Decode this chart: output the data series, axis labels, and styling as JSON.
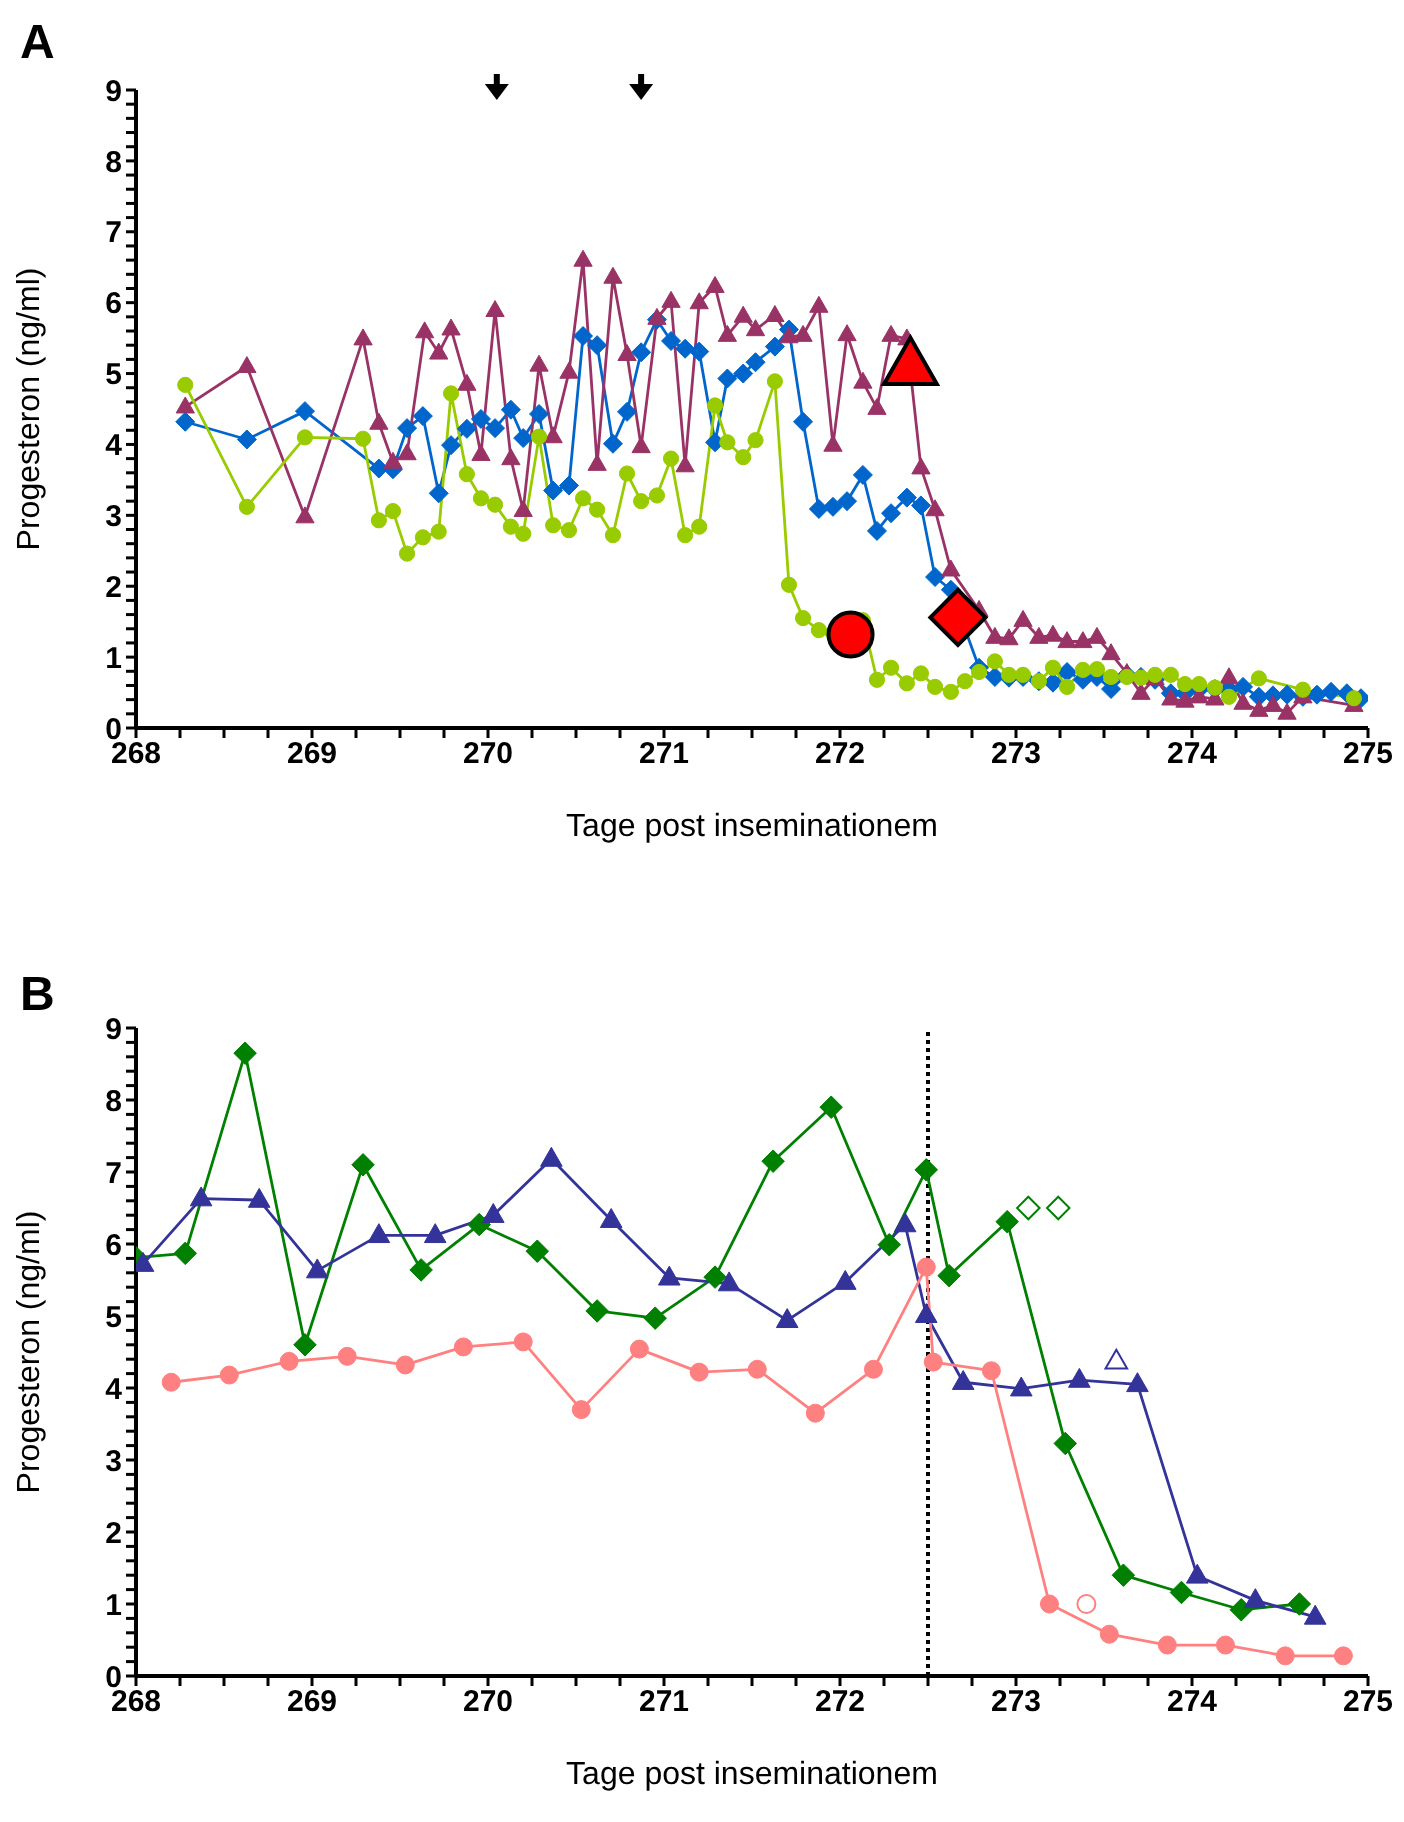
{
  "chart_data": [
    {
      "type": "line",
      "title": "A",
      "xlabel": "Tage post inseminationem",
      "ylabel": "Progesteron (ng/ml)",
      "xlim": [
        268,
        275
      ],
      "ylim": [
        0,
        9
      ],
      "xticks": [
        268,
        {
          "value": 268.25,
          "label": null
        },
        {
          "value": 268.5,
          "label": null
        },
        {
          "value": 268.75,
          "label": null
        },
        269,
        {
          "value": 269.25,
          "label": null
        },
        {
          "value": 269.5,
          "label": null
        },
        {
          "value": 269.75,
          "label": null
        },
        270,
        {
          "value": 270.25,
          "label": null
        },
        {
          "value": 270.5,
          "label": null
        },
        {
          "value": 270.75,
          "label": null
        },
        271,
        {
          "value": 271.25,
          "label": null
        },
        {
          "value": 271.5,
          "label": null
        },
        {
          "value": 271.75,
          "label": null
        },
        272,
        {
          "value": 272.25,
          "label": null
        },
        {
          "value": 272.5,
          "label": null
        },
        {
          "value": 272.75,
          "label": null
        },
        273,
        {
          "value": 273.25,
          "label": null
        },
        {
          "value": 273.5,
          "label": null
        },
        {
          "value": 273.75,
          "label": null
        },
        274,
        {
          "value": 274.25,
          "label": null
        },
        {
          "value": 274.5,
          "label": null
        },
        {
          "value": 274.75,
          "label": null
        },
        275
      ],
      "yticks": [
        0,
        {
          "value": 0.2,
          "label": null
        },
        {
          "value": 0.4,
          "label": null
        },
        {
          "value": 0.6,
          "label": null
        },
        {
          "value": 0.8,
          "label": null
        },
        1,
        {
          "value": 1.2,
          "label": null
        },
        {
          "value": 1.4,
          "label": null
        },
        {
          "value": 1.6,
          "label": null
        },
        {
          "value": 1.8,
          "label": null
        },
        2,
        {
          "value": 2.2,
          "label": null
        },
        {
          "value": 2.4,
          "label": null
        },
        {
          "value": 2.6,
          "label": null
        },
        {
          "value": 2.8,
          "label": null
        },
        3,
        {
          "value": 3.2,
          "label": null
        },
        {
          "value": 3.4,
          "label": null
        },
        {
          "value": 3.6,
          "label": null
        },
        {
          "value": 3.8,
          "label": null
        },
        4,
        {
          "value": 4.2,
          "label": null
        },
        {
          "value": 4.4,
          "label": null
        },
        {
          "value": 4.6,
          "label": null
        },
        {
          "value": 4.8,
          "label": null
        },
        5,
        {
          "value": 5.2,
          "label": null
        },
        {
          "value": 5.4,
          "label": null
        },
        {
          "value": 5.6,
          "label": null
        },
        {
          "value": 5.8,
          "label": null
        },
        6,
        {
          "value": 6.2,
          "label": null
        },
        {
          "value": 6.4,
          "label": null
        },
        {
          "value": 6.6,
          "label": null
        },
        {
          "value": 6.8,
          "label": null
        },
        7,
        {
          "value": 7.2,
          "label": null
        },
        {
          "value": 7.4,
          "label": null
        },
        {
          "value": 7.6,
          "label": null
        },
        {
          "value": 7.8,
          "label": null
        },
        8,
        {
          "value": 8.2,
          "label": null
        },
        {
          "value": 8.4,
          "label": null
        },
        {
          "value": 8.6,
          "label": null
        },
        {
          "value": 8.8,
          "label": null
        },
        9
      ],
      "series": [
        {
          "type": "line",
          "marker": "diamond",
          "color": "#0066cc",
          "x": [
            268.28,
            268.63,
            268.96,
            269.38,
            269.46,
            269.54,
            269.63,
            269.72,
            269.79,
            269.88,
            269.96,
            270.04,
            270.13,
            270.2,
            270.29,
            270.37,
            270.46,
            270.54,
            270.62,
            270.71,
            270.79,
            270.87,
            270.96,
            271.04,
            271.12,
            271.2,
            271.29,
            271.36,
            271.45,
            271.52,
            271.63,
            271.71,
            271.79,
            271.88,
            271.96,
            272.04,
            272.13,
            272.21,
            272.29,
            272.38,
            272.46,
            272.54,
            272.63,
            272.79,
            272.88,
            272.96,
            273.04,
            273.13,
            273.21,
            273.29,
            273.38,
            273.46,
            273.54,
            273.63,
            273.71,
            273.79,
            273.88,
            273.96,
            274.04,
            274.13,
            274.21,
            274.29,
            274.38,
            274.46,
            274.54,
            274.63,
            274.71,
            274.79,
            274.88,
            274.96
          ],
          "values": [
            4.32,
            4.07,
            4.47,
            3.66,
            3.65,
            4.23,
            4.4,
            3.31,
            3.99,
            4.22,
            4.36,
            4.23,
            4.49,
            4.09,
            4.43,
            3.35,
            3.42,
            5.53,
            5.4,
            4.01,
            4.46,
            5.3,
            5.76,
            5.46,
            5.35,
            5.31,
            4.03,
            4.93,
            5.0,
            5.16,
            5.38,
            5.62,
            4.32,
            3.09,
            3.12,
            3.2,
            3.57,
            2.78,
            3.03,
            3.25,
            3.14,
            2.13,
            1.95,
            0.85,
            0.72,
            0.71,
            0.72,
            0.66,
            0.64,
            0.79,
            0.68,
            0.72,
            0.55,
            0.75,
            0.72,
            0.68,
            0.49,
            0.49,
            0.54,
            0.55,
            0.54,
            0.58,
            0.44,
            0.46,
            0.47,
            0.44,
            0.47,
            0.51,
            0.49,
            0.42
          ]
        },
        {
          "type": "line",
          "marker": "triangle",
          "color": "#993366",
          "x": [
            268.28,
            268.63,
            268.96,
            269.29,
            269.38,
            269.46,
            269.54,
            269.64,
            269.72,
            269.79,
            269.88,
            269.96,
            270.04,
            270.13,
            270.2,
            270.29,
            270.37,
            270.46,
            270.54,
            270.62,
            270.71,
            270.79,
            270.87,
            270.96,
            271.04,
            271.12,
            271.2,
            271.29,
            271.36,
            271.45,
            271.52,
            271.63,
            271.71,
            271.79,
            271.88,
            271.96,
            272.04,
            272.13,
            272.21,
            272.29,
            272.38,
            272.46,
            272.54,
            272.63,
            272.79,
            272.88,
            272.96,
            273.04,
            273.13,
            273.21,
            273.29,
            273.38,
            273.46,
            273.54,
            273.63,
            273.71,
            273.79,
            273.88,
            273.96,
            274.04,
            274.13,
            274.21,
            274.29,
            274.38,
            274.46,
            274.54,
            274.63,
            274.92
          ],
          "values": [
            4.53,
            5.1,
            2.98,
            5.49,
            4.3,
            3.75,
            3.87,
            5.59,
            5.29,
            5.63,
            4.85,
            3.86,
            5.89,
            3.8,
            3.07,
            5.12,
            4.11,
            5.02,
            6.6,
            3.72,
            6.36,
            5.27,
            3.97,
            5.78,
            6.02,
            3.7,
            6.0,
            6.23,
            5.54,
            5.81,
            5.62,
            5.82,
            5.52,
            5.54,
            5.95,
            3.99,
            5.55,
            4.88,
            4.51,
            5.54,
            5.49,
            3.67,
            3.08,
            2.23,
            1.66,
            1.28,
            1.26,
            1.52,
            1.28,
            1.31,
            1.22,
            1.22,
            1.28,
            1.05,
            0.77,
            0.49,
            0.7,
            0.41,
            0.38,
            0.44,
            0.41,
            0.71,
            0.35,
            0.25,
            0.32,
            0.21,
            0.44,
            0.32
          ]
        },
        {
          "type": "line",
          "marker": "circle",
          "color": "#99cc00",
          "x": [
            268.28,
            268.63,
            268.96,
            269.29,
            269.38,
            269.46,
            269.54,
            269.63,
            269.72,
            269.79,
            269.88,
            269.96,
            270.04,
            270.13,
            270.2,
            270.29,
            270.37,
            270.46,
            270.54,
            270.62,
            270.71,
            270.79,
            270.87,
            270.96,
            271.04,
            271.12,
            271.2,
            271.29,
            271.36,
            271.45,
            271.52,
            271.63,
            271.71,
            271.79,
            271.88,
            271.96,
            272.13,
            272.21,
            272.29,
            272.38,
            272.46,
            272.54,
            272.63,
            272.71,
            272.79,
            272.88,
            272.96,
            273.04,
            273.13,
            273.21,
            273.29,
            273.38,
            273.46,
            273.54,
            273.63,
            273.71,
            273.79,
            273.88,
            273.96,
            274.04,
            274.13,
            274.21,
            274.38,
            274.63,
            274.92
          ],
          "values": [
            4.84,
            3.12,
            4.1,
            4.08,
            2.93,
            3.06,
            2.46,
            2.69,
            2.77,
            4.72,
            3.58,
            3.24,
            3.15,
            2.84,
            2.74,
            4.11,
            2.86,
            2.79,
            3.24,
            3.08,
            2.72,
            3.59,
            3.2,
            3.28,
            3.8,
            2.72,
            2.84,
            4.55,
            4.03,
            3.82,
            4.06,
            4.89,
            2.02,
            1.55,
            1.38,
            1.34,
            1.52,
            0.68,
            0.85,
            0.63,
            0.77,
            0.58,
            0.51,
            0.66,
            0.79,
            0.94,
            0.75,
            0.75,
            0.66,
            0.85,
            0.58,
            0.82,
            0.83,
            0.72,
            0.72,
            0.71,
            0.75,
            0.75,
            0.62,
            0.62,
            0.57,
            0.44,
            0.7,
            0.54,
            0.42
          ]
        },
        {
          "type": "scatter",
          "marker": "circle",
          "color": "#000000",
          "colors": [
            "#ff0000"
          ],
          "x": [
            272.06
          ],
          "values": [
            1.32
          ]
        },
        {
          "type": "scatter",
          "marker": "triangle",
          "color": "#000000",
          "colors": [
            "#ff0000"
          ],
          "x": [
            272.4
          ],
          "values": [
            5.1
          ]
        },
        {
          "type": "scatter",
          "marker": "diamond",
          "color": "#000000",
          "colors": [
            "#ff0000"
          ],
          "x": [
            272.67
          ],
          "values": [
            1.56
          ]
        }
      ]
    },
    {
      "type": "line",
      "title": "B",
      "xlabel": "Tage post inseminationem",
      "ylabel": "Progesteron (ng/ml)",
      "xlim": [
        268,
        275
      ],
      "ylim": [
        0,
        9
      ],
      "xticks": [
        268,
        {
          "value": 268.25,
          "label": null
        },
        {
          "value": 268.5,
          "label": null
        },
        {
          "value": 268.75,
          "label": null
        },
        269,
        {
          "value": 269.25,
          "label": null
        },
        {
          "value": 269.5,
          "label": null
        },
        {
          "value": 269.75,
          "label": null
        },
        270,
        {
          "value": 270.25,
          "label": null
        },
        {
          "value": 270.5,
          "label": null
        },
        {
          "value": 270.75,
          "label": null
        },
        271,
        {
          "value": 271.25,
          "label": null
        },
        {
          "value": 271.5,
          "label": null
        },
        {
          "value": 271.75,
          "label": null
        },
        272,
        {
          "value": 272.25,
          "label": null
        },
        {
          "value": 272.5,
          "label": null
        },
        {
          "value": 272.75,
          "label": null
        },
        273,
        {
          "value": 273.25,
          "label": null
        },
        {
          "value": 273.5,
          "label": null
        },
        {
          "value": 273.75,
          "label": null
        },
        274,
        {
          "value": 274.25,
          "label": null
        },
        {
          "value": 274.5,
          "label": null
        },
        {
          "value": 274.75,
          "label": null
        },
        275
      ],
      "yticks": [
        0,
        {
          "value": 0.2,
          "label": null
        },
        {
          "value": 0.4,
          "label": null
        },
        {
          "value": 0.6,
          "label": null
        },
        {
          "value": 0.8,
          "label": null
        },
        1,
        {
          "value": 1.2,
          "label": null
        },
        {
          "value": 1.4,
          "label": null
        },
        {
          "value": 1.6,
          "label": null
        },
        {
          "value": 1.8,
          "label": null
        },
        2,
        {
          "value": 2.2,
          "label": null
        },
        {
          "value": 2.4,
          "label": null
        },
        {
          "value": 2.6,
          "label": null
        },
        {
          "value": 2.8,
          "label": null
        },
        3,
        {
          "value": 3.2,
          "label": null
        },
        {
          "value": 3.4,
          "label": null
        },
        {
          "value": 3.6,
          "label": null
        },
        {
          "value": 3.8,
          "label": null
        },
        4,
        {
          "value": 4.2,
          "label": null
        },
        {
          "value": 4.4,
          "label": null
        },
        {
          "value": 4.6,
          "label": null
        },
        {
          "value": 4.8,
          "label": null
        },
        5,
        {
          "value": 5.2,
          "label": null
        },
        {
          "value": 5.4,
          "label": null
        },
        {
          "value": 5.6,
          "label": null
        },
        {
          "value": 5.8,
          "label": null
        },
        6,
        {
          "value": 6.2,
          "label": null
        },
        {
          "value": 6.4,
          "label": null
        },
        {
          "value": 6.6,
          "label": null
        },
        {
          "value": 6.8,
          "label": null
        },
        7,
        {
          "value": 7.2,
          "label": null
        },
        {
          "value": 7.4,
          "label": null
        },
        {
          "value": 7.6,
          "label": null
        },
        {
          "value": 7.8,
          "label": null
        },
        8,
        {
          "value": 8.2,
          "label": null
        },
        {
          "value": 8.4,
          "label": null
        },
        {
          "value": 8.6,
          "label": null
        },
        {
          "value": 8.8,
          "label": null
        },
        9
      ],
      "ref_lines": [
        {
          "axis": "x",
          "value": 272.5,
          "color": "#000000",
          "line_style": "dotted"
        }
      ],
      "series": [
        {
          "type": "line",
          "marker": "diamond",
          "color": "#008000",
          "x": [
            268.0,
            268.28,
            268.62,
            268.96,
            269.29,
            269.62,
            269.95,
            270.28,
            270.62,
            270.95,
            271.29,
            271.62,
            271.95,
            272.28,
            272.49,
            272.62,
            272.95,
            273.28,
            273.61,
            273.94,
            274.28,
            274.61
          ],
          "values": [
            5.81,
            5.87,
            8.65,
            4.6,
            7.1,
            5.64,
            6.27,
            5.9,
            5.07,
            4.97,
            5.54,
            7.15,
            7.9,
            5.99,
            7.03,
            5.56,
            6.31,
            3.23,
            1.4,
            1.16,
            0.92,
            1.0
          ]
        },
        {
          "type": "line",
          "marker": "triangle",
          "color": "#333399",
          "x": [
            268.04,
            268.37,
            268.7,
            269.03,
            269.38,
            269.7,
            270.03,
            270.36,
            270.7,
            271.03,
            271.37,
            271.7,
            272.03,
            272.37,
            272.49,
            272.7,
            273.03,
            273.36,
            273.69,
            274.03,
            274.36,
            274.7
          ],
          "values": [
            5.72,
            6.63,
            6.61,
            5.63,
            6.12,
            6.12,
            6.4,
            7.18,
            6.33,
            5.53,
            5.45,
            4.94,
            5.47,
            6.27,
            5.01,
            4.08,
            3.99,
            4.11,
            4.05,
            1.39,
            1.05,
            0.82
          ]
        },
        {
          "type": "line",
          "marker": "circle",
          "color": "#ff8080",
          "x": [
            268.2,
            268.53,
            268.87,
            269.2,
            269.53,
            269.86,
            270.2,
            270.53,
            270.86,
            271.2,
            271.53,
            271.86,
            272.19,
            272.49,
            272.53,
            272.86,
            273.19,
            273.53,
            273.86,
            274.19,
            274.53,
            274.86
          ],
          "values": [
            4.08,
            4.18,
            4.37,
            4.44,
            4.32,
            4.57,
            4.64,
            3.7,
            4.54,
            4.22,
            4.26,
            3.65,
            4.26,
            5.68,
            4.36,
            4.24,
            1.0,
            0.58,
            0.43,
            0.43,
            0.28,
            0.28
          ]
        },
        {
          "type": "scatter",
          "marker": "diamond",
          "color": "#008000",
          "x": [
            273.07,
            273.24
          ],
          "values": [
            6.5,
            6.5
          ]
        },
        {
          "type": "scatter",
          "marker": "triangle",
          "color": "#333399",
          "x": [
            273.57
          ],
          "values": [
            4.37
          ]
        },
        {
          "type": "scatter",
          "marker": "circle",
          "color": "#ff8080",
          "x": [
            273.4
          ],
          "values": [
            1.0
          ]
        }
      ]
    }
  ]
}
